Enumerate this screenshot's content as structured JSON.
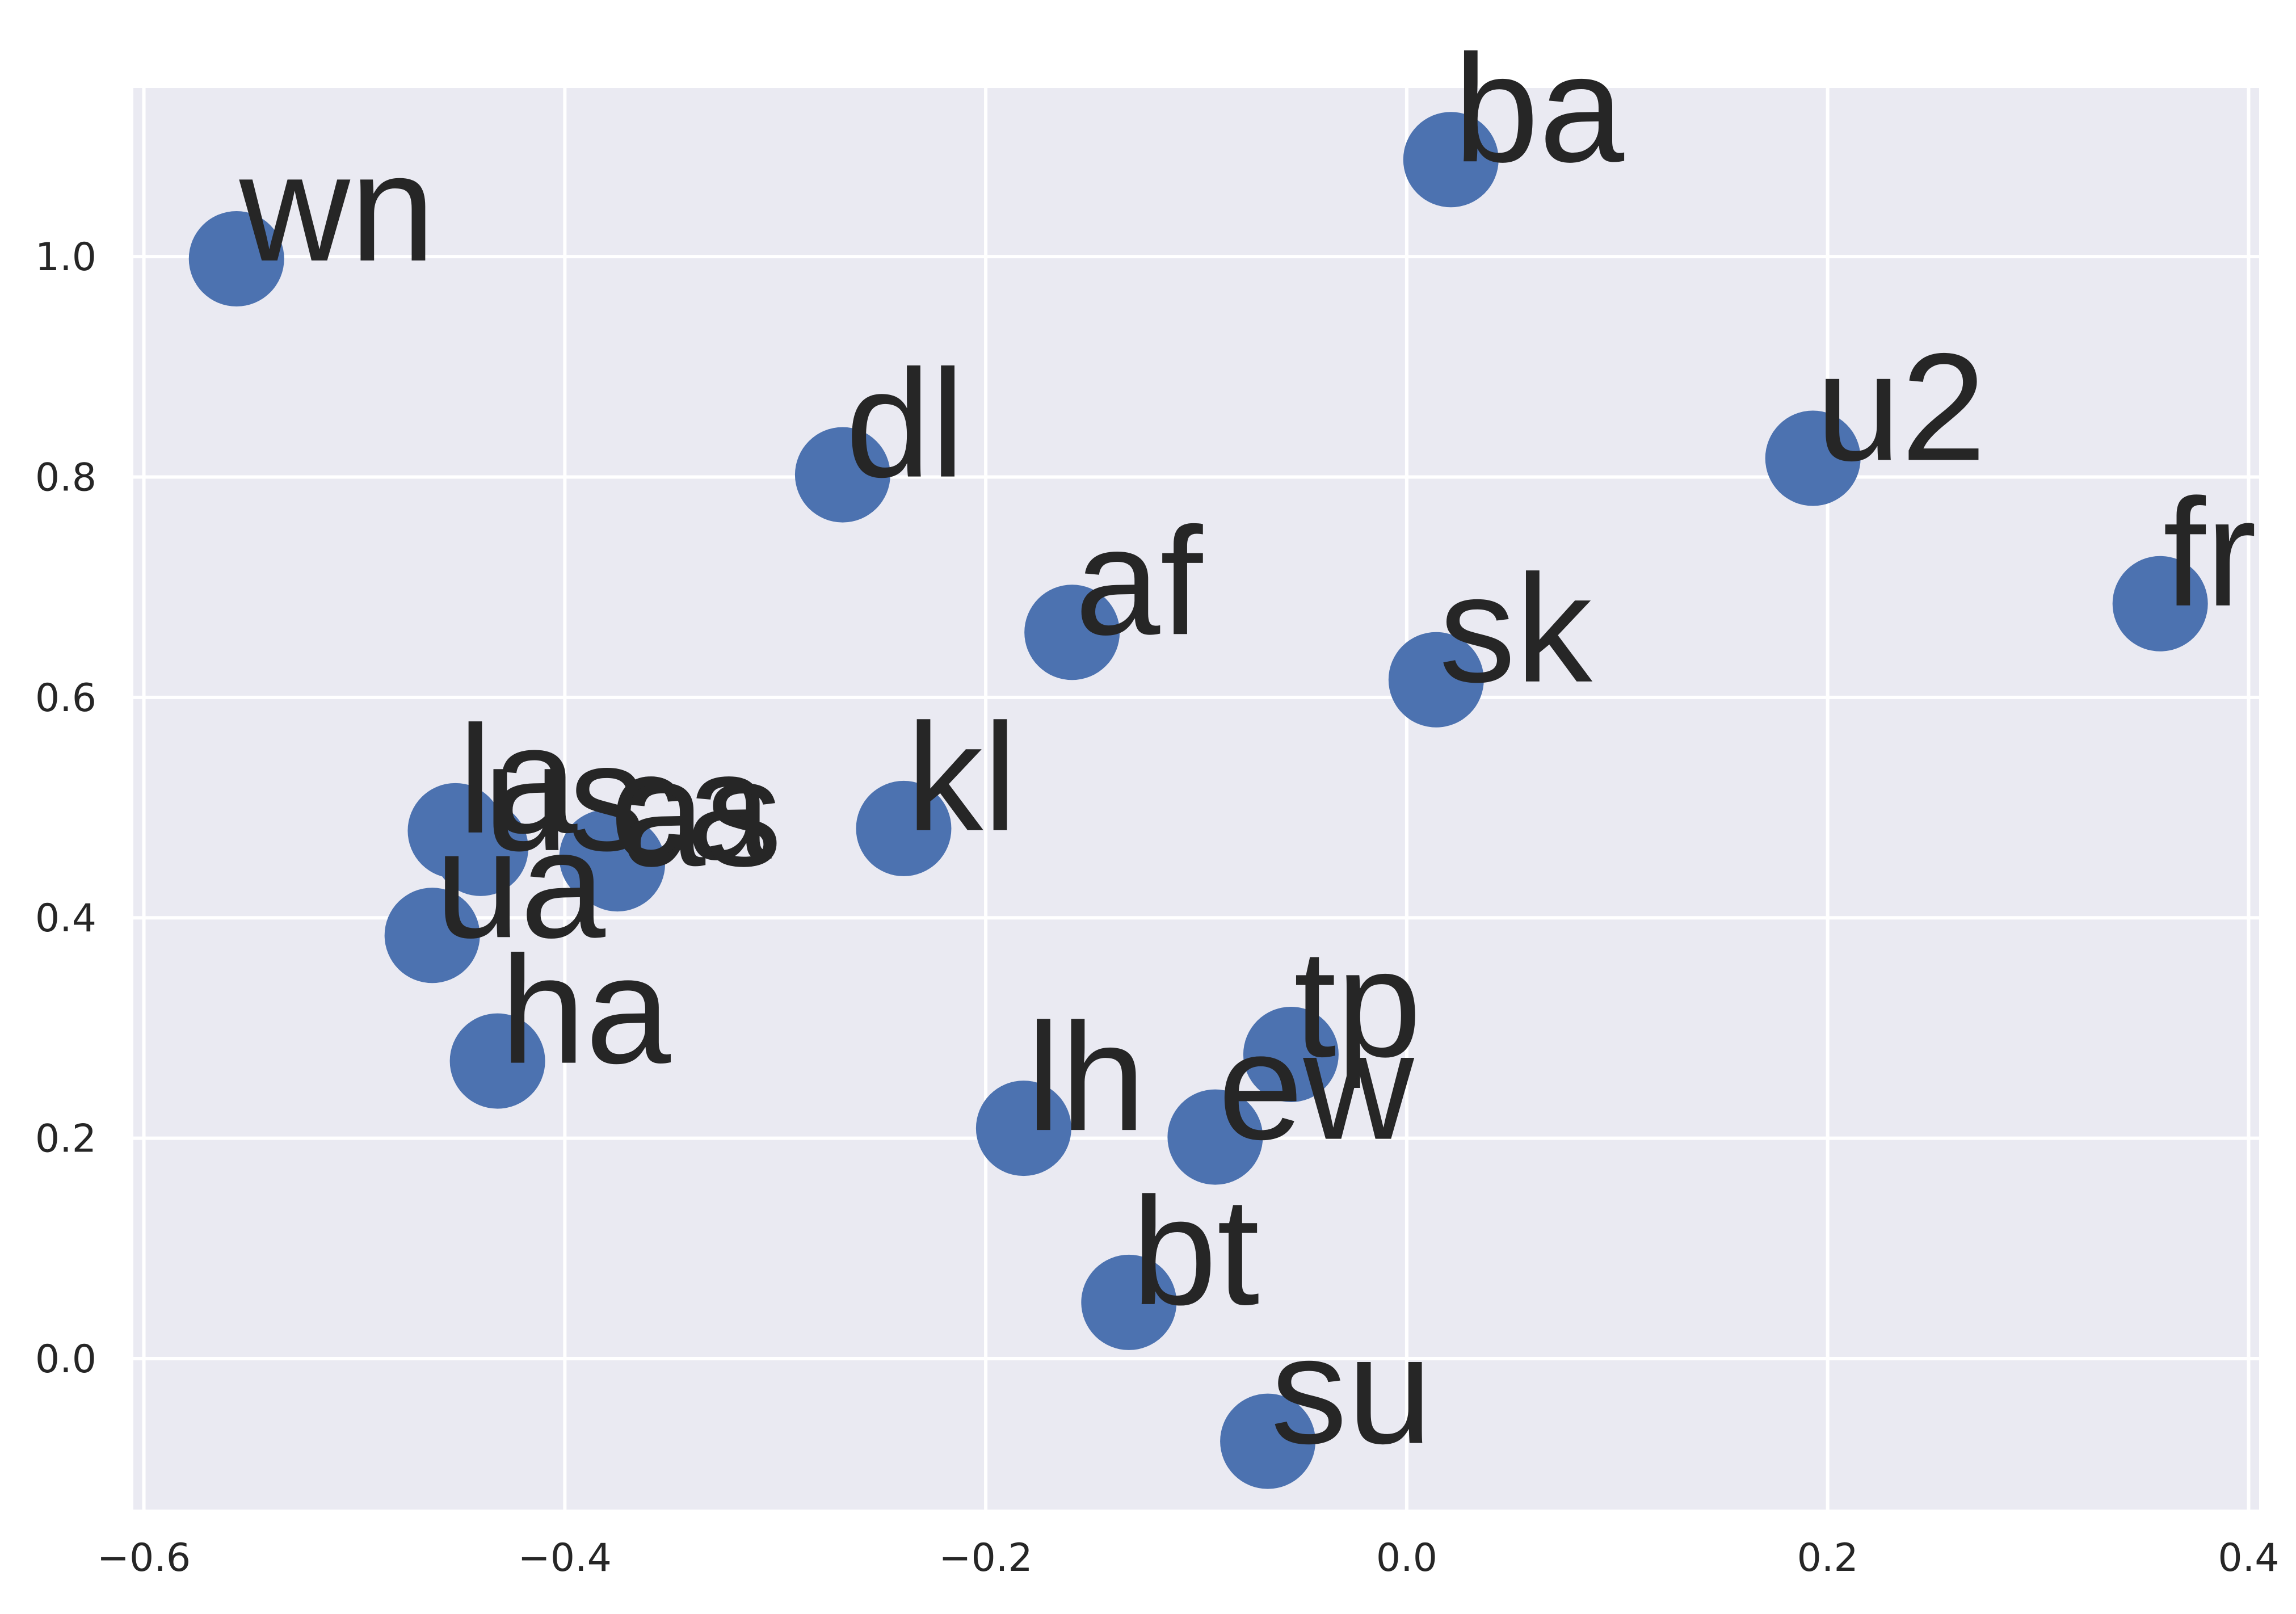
{
  "chart_data": {
    "type": "scatter",
    "title": "",
    "xlabel": "",
    "ylabel": "",
    "xlim": [
      -0.605,
      0.405
    ],
    "ylim": [
      -0.137,
      1.153
    ],
    "grid": true,
    "colors": {
      "background": "#eaeaf2",
      "grid": "#ffffff",
      "marker": "#4c72b0",
      "text": "#262626"
    },
    "x_ticks": [
      {
        "value": -0.6,
        "label": "−0.6"
      },
      {
        "value": -0.4,
        "label": "−0.4"
      },
      {
        "value": -0.2,
        "label": "−0.2"
      },
      {
        "value": 0.0,
        "label": "0.0"
      },
      {
        "value": 0.2,
        "label": "0.2"
      },
      {
        "value": 0.4,
        "label": "0.4"
      }
    ],
    "y_ticks": [
      {
        "value": 0.0,
        "label": "0.0"
      },
      {
        "value": 0.2,
        "label": "0.2"
      },
      {
        "value": 0.4,
        "label": "0.4"
      },
      {
        "value": 0.6,
        "label": "0.6"
      },
      {
        "value": 0.8,
        "label": "0.8"
      },
      {
        "value": 1.0,
        "label": "1.0"
      }
    ],
    "points": [
      {
        "label": "wn",
        "x": -0.556,
        "y": 0.998
      },
      {
        "label": "ba",
        "x": 0.021,
        "y": 1.088
      },
      {
        "label": "dl",
        "x": -0.268,
        "y": 0.802
      },
      {
        "label": "u2",
        "x": 0.193,
        "y": 0.817
      },
      {
        "label": "fr",
        "x": 0.358,
        "y": 0.685
      },
      {
        "label": "af",
        "x": -0.159,
        "y": 0.659
      },
      {
        "label": "sk",
        "x": 0.014,
        "y": 0.616
      },
      {
        "label": "kl",
        "x": -0.239,
        "y": 0.481
      },
      {
        "label": "la",
        "x": -0.452,
        "y": 0.479
      },
      {
        "label": "us",
        "x": -0.44,
        "y": 0.463
      },
      {
        "label": "ca",
        "x": -0.38,
        "y": 0.455
      },
      {
        "label": "as",
        "x": -0.375,
        "y": 0.449
      },
      {
        "label": "ua",
        "x": -0.463,
        "y": 0.384
      },
      {
        "label": "ha",
        "x": -0.432,
        "y": 0.27
      },
      {
        "label": "tp",
        "x": -0.055,
        "y": 0.276
      },
      {
        "label": "lh",
        "x": -0.182,
        "y": 0.209
      },
      {
        "label": "ew",
        "x": -0.091,
        "y": 0.201
      },
      {
        "label": "bt",
        "x": -0.132,
        "y": 0.051
      },
      {
        "label": "su",
        "x": -0.066,
        "y": -0.075
      }
    ]
  }
}
